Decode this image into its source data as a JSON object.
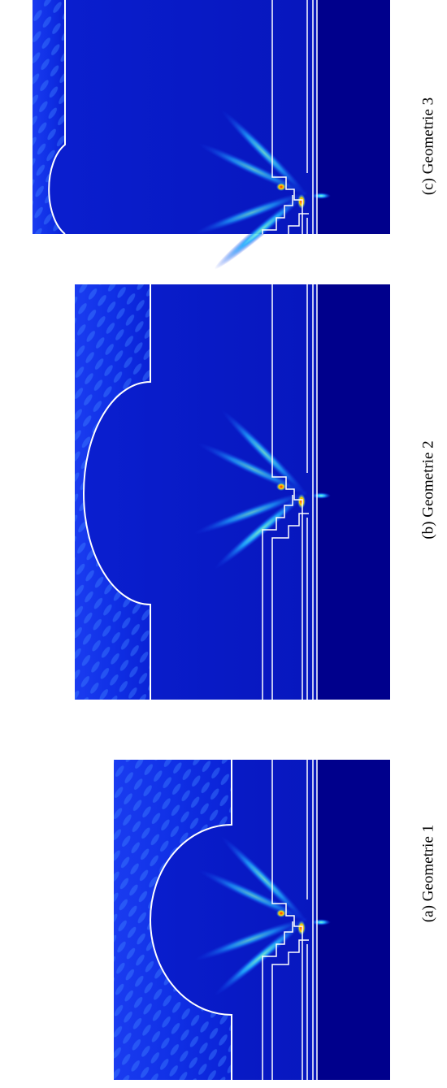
{
  "figure": {
    "panels": [
      {
        "caption": "(a) Geometrie 1"
      },
      {
        "caption": "(b) Geometrie 2"
      },
      {
        "caption": "(c) Geometrie 3"
      }
    ]
  }
}
